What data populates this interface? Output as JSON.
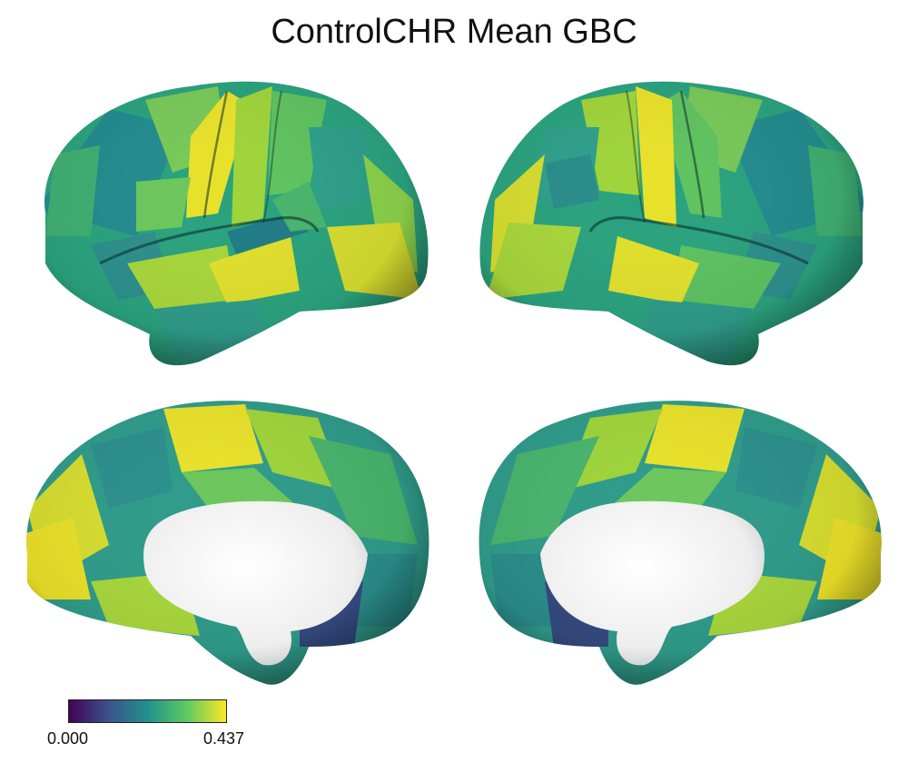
{
  "title": "ControlCHR Mean GBC",
  "colorbar": {
    "min_label": "0.000",
    "max_label": "0.437",
    "min_value": 0.0,
    "max_value": 0.437,
    "colormap": "viridis",
    "colors": [
      "#440154",
      "#3b528b",
      "#21918c",
      "#5ec962",
      "#fde725"
    ]
  },
  "views": [
    {
      "hemisphere": "left",
      "view": "lateral"
    },
    {
      "hemisphere": "right",
      "view": "lateral"
    },
    {
      "hemisphere": "left",
      "view": "medial"
    },
    {
      "hemisphere": "right",
      "view": "medial"
    }
  ],
  "medial_wall_color": "#ffffff"
}
